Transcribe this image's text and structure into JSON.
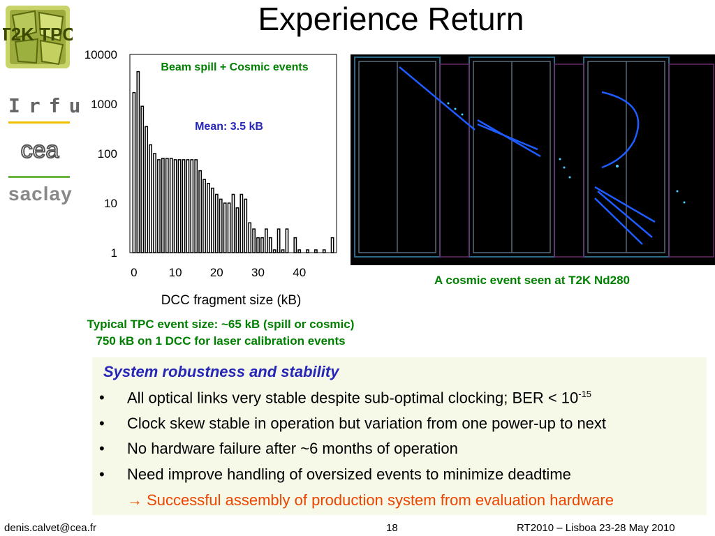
{
  "slide": {
    "title": "Experience Return",
    "logos": {
      "t2k_text": "T2K TPC",
      "irfu": "Irfu",
      "cea": "cea",
      "saclay": "saclay"
    }
  },
  "chart_data": {
    "type": "bar",
    "xlabel": "DCC fragment size (kB)",
    "ylabel": "",
    "x_ticks": [
      "0",
      "10",
      "20",
      "30",
      "40"
    ],
    "y_ticks": [
      "1",
      "10",
      "100",
      "1000",
      "10000"
    ],
    "yscale": "log",
    "ylim": [
      1,
      10000
    ],
    "xlim": [
      -1,
      49
    ],
    "legend_box": "Beam spill + Cosmic events",
    "annotation": "Mean: 3.5 kB",
    "x": [
      0,
      1,
      2,
      3,
      4,
      5,
      6,
      7,
      8,
      9,
      10,
      11,
      12,
      13,
      14,
      15,
      16,
      17,
      18,
      19,
      20,
      21,
      22,
      23,
      24,
      25,
      26,
      27,
      28,
      29,
      30,
      31,
      32,
      33,
      34,
      35,
      36,
      37,
      38,
      39,
      40,
      41,
      42,
      43,
      44,
      45,
      46,
      47,
      48
    ],
    "values": [
      1700,
      4500,
      900,
      350,
      150,
      100,
      75,
      80,
      80,
      80,
      75,
      75,
      75,
      75,
      75,
      75,
      45,
      30,
      25,
      20,
      15,
      12,
      10,
      10,
      15,
      8,
      15,
      12,
      4,
      3,
      2,
      2,
      3,
      2,
      1,
      3,
      1,
      3,
      0,
      2,
      1,
      0,
      1,
      0,
      1,
      0,
      1,
      0,
      2
    ],
    "bar_color": "#ffffff",
    "edge_color": "#000000"
  },
  "chart_note": {
    "line1": "Typical TPC event size: ~65 kB (spill or cosmic)",
    "line2": "750 kB on 1 DCC for laser calibration events"
  },
  "event_image": {
    "caption": "A cosmic event seen at T2K Nd280"
  },
  "summary": {
    "heading": "System robustness and stability",
    "bullet_symbol": "•",
    "item1_text": "All optical links very stable despite sub-optimal clocking; BER < 10",
    "item1_sup": "-15",
    "item2": "Clock skew stable in operation but variation from one power-up to next",
    "item3": "No hardware failure after ~6 months of operation",
    "item4": "Need improve handling of oversized events to minimize deadtime",
    "conclusion": "→ Successful assembly of production system from evaluation hardware"
  },
  "footer": {
    "email": "denis.calvet@cea.fr",
    "page": "18",
    "event": "RT2010 – Lisboa 23-28 May 2010"
  },
  "colors": {
    "heading_blue": "#2626b8",
    "green_text": "#008000",
    "conclusion_orange": "#ee4400",
    "summary_bg": "#f6f8e8"
  }
}
